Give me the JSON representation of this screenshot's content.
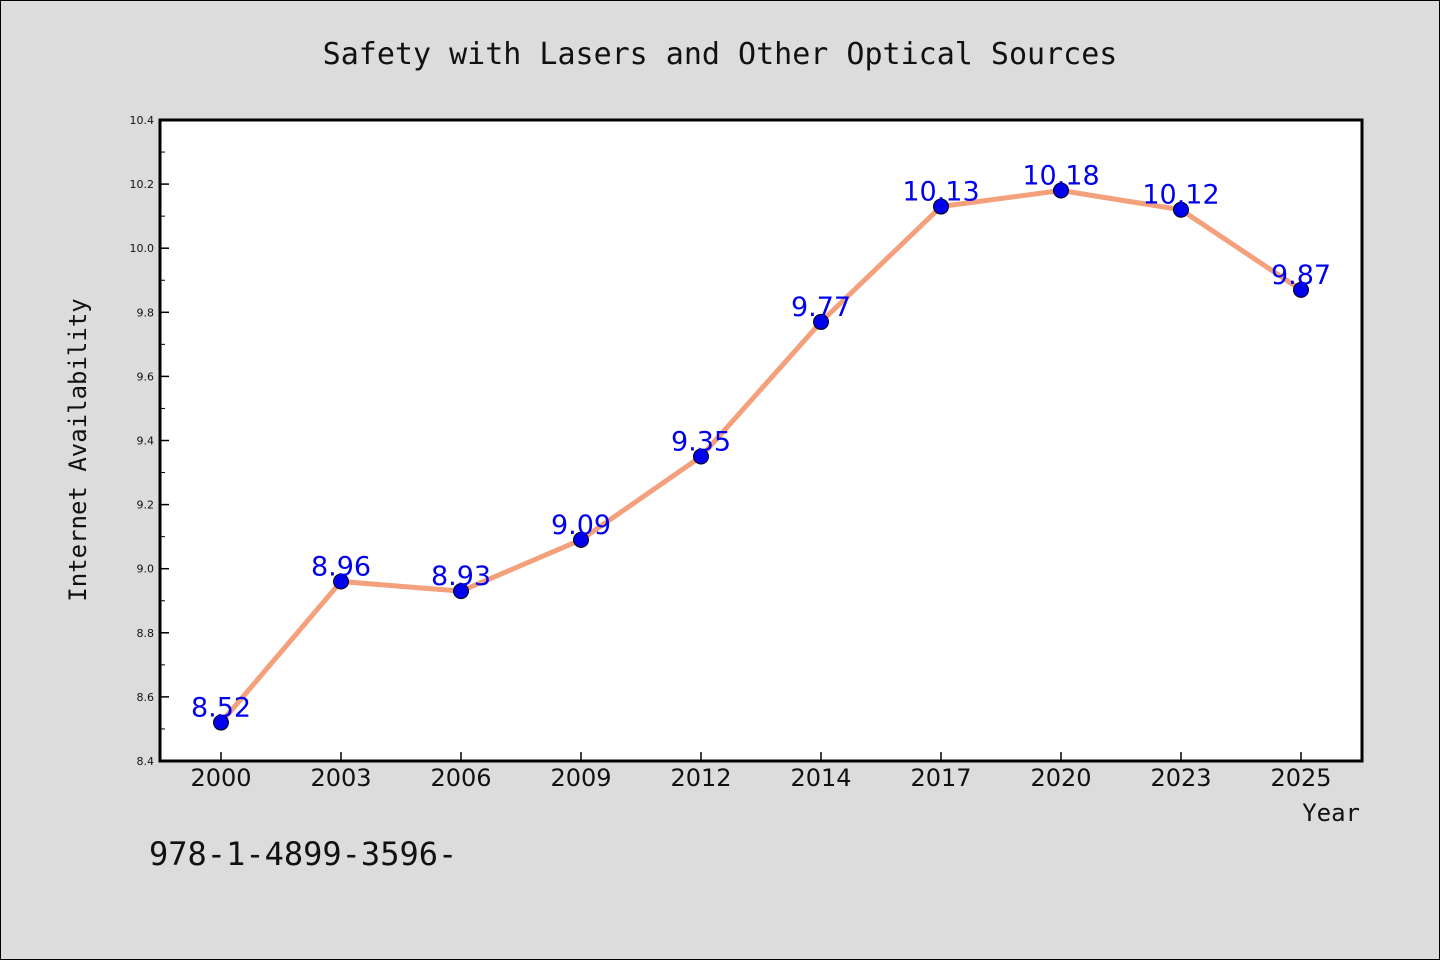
{
  "chart_data": {
    "type": "line",
    "title": "Safety with Lasers and Other Optical Sources",
    "xlabel": "Year",
    "ylabel": "Internet Availability",
    "categories": [
      "2000",
      "2003",
      "2006",
      "2009",
      "2012",
      "2014",
      "2017",
      "2020",
      "2023",
      "2025"
    ],
    "series": [
      {
        "values": [
          8.52,
          8.96,
          8.93,
          9.09,
          9.35,
          9.77,
          10.13,
          10.18,
          10.12,
          9.87
        ],
        "line_color": "#f4a07c",
        "marker_color": "#0000ee"
      }
    ],
    "data_labels": [
      "8.52",
      "8.96",
      "8.93",
      "9.09",
      "9.35",
      "9.77",
      "10.13",
      "10.18",
      "10.12",
      "9.87"
    ],
    "data_label_color": "#0000ee",
    "ylim": [
      8.4,
      10.4
    ],
    "y_ticks": [
      "8.4",
      "8.6",
      "8.8",
      "9.0",
      "9.2",
      "9.4",
      "9.6",
      "9.8",
      "10.0",
      "10.2",
      "10.4"
    ],
    "grid": false,
    "legend": "none"
  },
  "footer": {
    "text": "978-1-4899-3596-"
  }
}
